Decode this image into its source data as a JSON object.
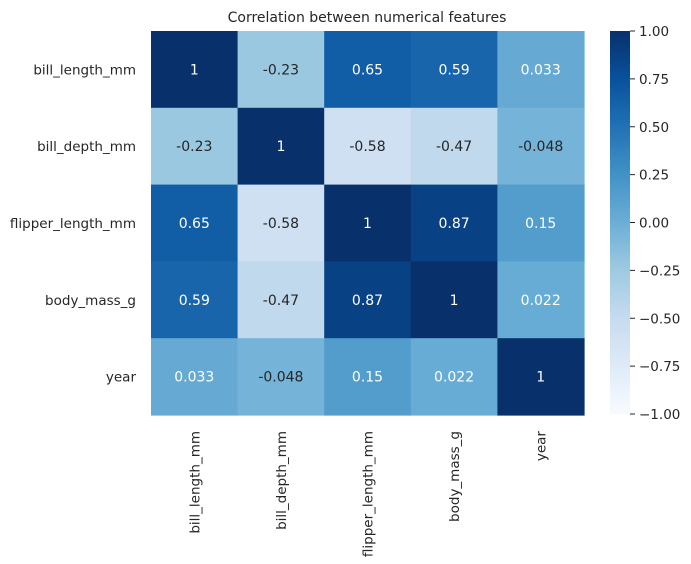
{
  "chart_data": {
    "type": "heatmap",
    "title": "Correlation between numerical features",
    "row_labels": [
      "bill_length_mm",
      "bill_depth_mm",
      "flipper_length_mm",
      "body_mass_g",
      "year"
    ],
    "col_labels": [
      "bill_length_mm",
      "bill_depth_mm",
      "flipper_length_mm",
      "body_mass_g",
      "year"
    ],
    "values": [
      [
        1,
        -0.23,
        0.65,
        0.59,
        0.033
      ],
      [
        -0.23,
        1,
        -0.58,
        -0.47,
        -0.048
      ],
      [
        0.65,
        -0.58,
        1,
        0.87,
        0.15
      ],
      [
        0.59,
        -0.47,
        0.87,
        1,
        0.022
      ],
      [
        0.033,
        -0.048,
        0.15,
        0.022,
        1
      ]
    ],
    "cell_labels": [
      [
        "1",
        "-0.23",
        "0.65",
        "0.59",
        "0.033"
      ],
      [
        "-0.23",
        "1",
        "-0.58",
        "-0.47",
        "-0.048"
      ],
      [
        "0.65",
        "-0.58",
        "1",
        "0.87",
        "0.15"
      ],
      [
        "0.59",
        "-0.47",
        "0.87",
        "1",
        "0.022"
      ],
      [
        "0.033",
        "-0.048",
        "0.15",
        "0.022",
        "1"
      ]
    ],
    "colormap": "Blues",
    "colorbar": {
      "vmin": -1.0,
      "vmax": 1.0,
      "ticks": [
        1.0,
        0.75,
        0.5,
        0.25,
        0.0,
        -0.25,
        -0.5,
        -0.75,
        -1.0
      ],
      "tick_labels": [
        "1.00",
        "0.75",
        "0.50",
        "0.25",
        "0.00",
        "−0.25",
        "−0.50",
        "−0.75",
        "−1.00"
      ]
    }
  },
  "colors": {
    "text_dark": "#262626",
    "text_light": "#ffffff",
    "blues_stops": [
      "#f7fbff",
      "#deebf7",
      "#c6dbef",
      "#9ecae1",
      "#6baed6",
      "#4292c6",
      "#2171b5",
      "#08519c",
      "#08306b"
    ]
  }
}
